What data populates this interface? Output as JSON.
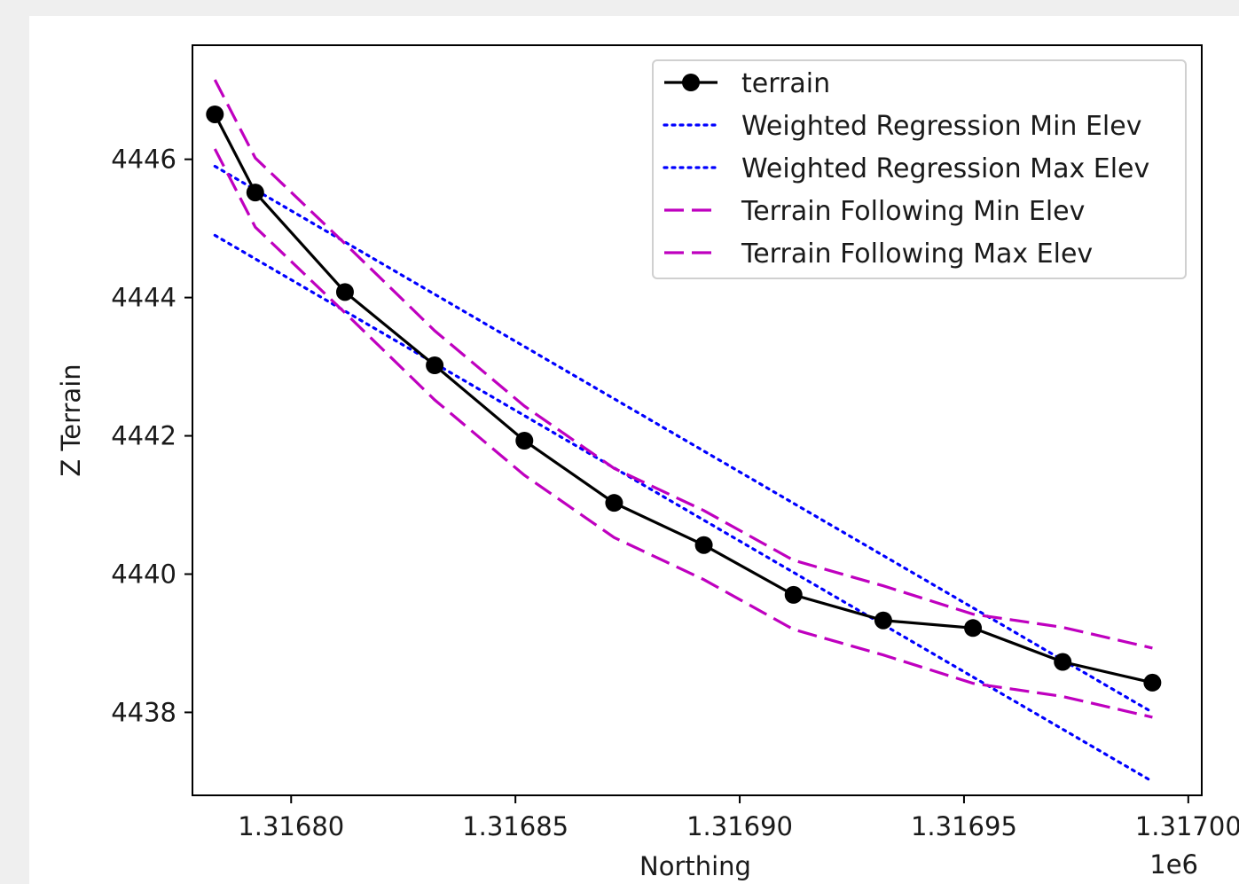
{
  "chart_data": {
    "type": "line",
    "xlabel": "Northing",
    "ylabel": "Z Terrain",
    "x_offset_label": "1e6",
    "xlim": [
      1316778,
      1317003
    ],
    "ylim": [
      4436.8,
      4447.65
    ],
    "x_ticks": [
      1316800,
      1316850,
      1316900,
      1316950,
      1317000
    ],
    "x_tick_labels": [
      "1.31680",
      "1.31685",
      "1.31690",
      "1.31695",
      "1.31700"
    ],
    "y_ticks": [
      4438,
      4440,
      4442,
      4444,
      4446
    ],
    "y_tick_labels": [
      "4438",
      "4440",
      "4442",
      "4444",
      "4446"
    ],
    "grid": false,
    "legend_position": "top-right",
    "series": [
      {
        "name": "terrain",
        "style": "solid-markers",
        "color": "#000000",
        "x": [
          1316783,
          1316792,
          1316812,
          1316832,
          1316852,
          1316872,
          1316892,
          1316912,
          1316932,
          1316952,
          1316972,
          1316992
        ],
        "y": [
          4446.65,
          4445.52,
          4444.08,
          4443.02,
          4441.93,
          4441.03,
          4440.42,
          4439.7,
          4439.33,
          4439.22,
          4438.73,
          4438.43
        ]
      },
      {
        "name": "Weighted Regression Min Elev",
        "style": "dotted",
        "color": "#0000ff",
        "x": [
          1316783,
          1316992
        ],
        "y": [
          4444.9,
          4437.0
        ]
      },
      {
        "name": "Weighted Regression Max Elev",
        "style": "dotted",
        "color": "#0000ff",
        "x": [
          1316783,
          1316992
        ],
        "y": [
          4445.9,
          4438.0
        ]
      },
      {
        "name": "Terrain Following Min Elev",
        "style": "dashed",
        "color": "#bf00bf",
        "x": [
          1316783,
          1316792,
          1316812,
          1316832,
          1316852,
          1316872,
          1316892,
          1316912,
          1316932,
          1316952,
          1316972,
          1316992
        ],
        "y": [
          4446.15,
          4445.02,
          4443.78,
          4442.52,
          4441.43,
          4440.53,
          4439.92,
          4439.2,
          4438.83,
          4438.42,
          4438.23,
          4437.93
        ]
      },
      {
        "name": "Terrain Following Max Elev",
        "style": "dashed",
        "color": "#bf00bf",
        "x": [
          1316783,
          1316792,
          1316812,
          1316832,
          1316852,
          1316872,
          1316892,
          1316912,
          1316932,
          1316952,
          1316972,
          1316992
        ],
        "y": [
          4447.15,
          4446.02,
          4444.78,
          4443.52,
          4442.43,
          4441.53,
          4440.92,
          4440.2,
          4439.83,
          4439.42,
          4439.23,
          4438.93
        ]
      }
    ]
  }
}
